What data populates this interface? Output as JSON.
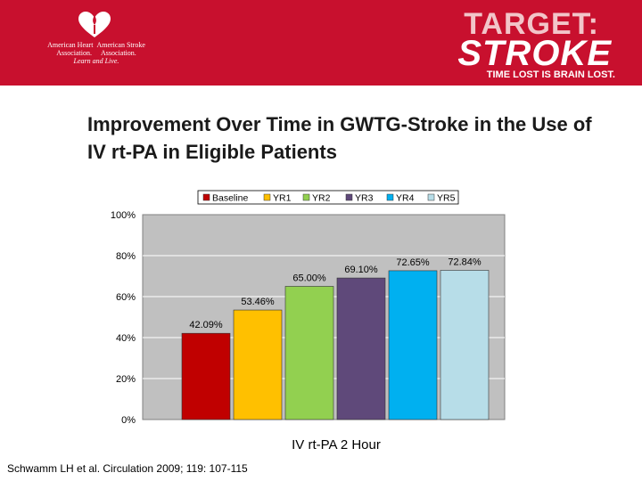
{
  "header": {
    "aha_logo": {
      "name_left_1": "American Heart",
      "name_left_2": "Association.",
      "name_right_1": "American Stroke",
      "name_right_2": "Association.",
      "tagline": "Learn and Live."
    },
    "target_stroke": {
      "line1": "TARGET:",
      "line2": "STROKE",
      "tagline": "TIME LOST IS BRAIN LOST."
    }
  },
  "slide_title": "Improvement Over Time in GWTG-Stroke in the Use of IV rt-PA in Eligible Patients",
  "source": "Schwamm LH et al. Circulation 2009; 119: 107-115",
  "chart_data": {
    "type": "bar",
    "xlabel": "IV rt-PA 2 Hour",
    "ylim": [
      0,
      100
    ],
    "yticks": [
      "0%",
      "20%",
      "40%",
      "60%",
      "80%",
      "100%"
    ],
    "grid": true,
    "legend_position": "top",
    "series": [
      {
        "name": "Baseline",
        "value": 42.09,
        "label": "42.09%",
        "color": "#c00000"
      },
      {
        "name": "YR1",
        "value": 53.46,
        "label": "53.46%",
        "color": "#ffc000"
      },
      {
        "name": "YR2",
        "value": 65.0,
        "label": "65.00%",
        "color": "#92d050"
      },
      {
        "name": "YR3",
        "value": 69.1,
        "label": "69.10%",
        "color": "#5f497a"
      },
      {
        "name": "YR4",
        "value": 72.65,
        "label": "72.65%",
        "color": "#00b0f0"
      },
      {
        "name": "YR5",
        "value": 72.84,
        "label": "72.84%",
        "color": "#b7dde8"
      }
    ]
  },
  "colors": {
    "header_bg": "#c8102e",
    "plot_bg": "#c0c0c0"
  }
}
